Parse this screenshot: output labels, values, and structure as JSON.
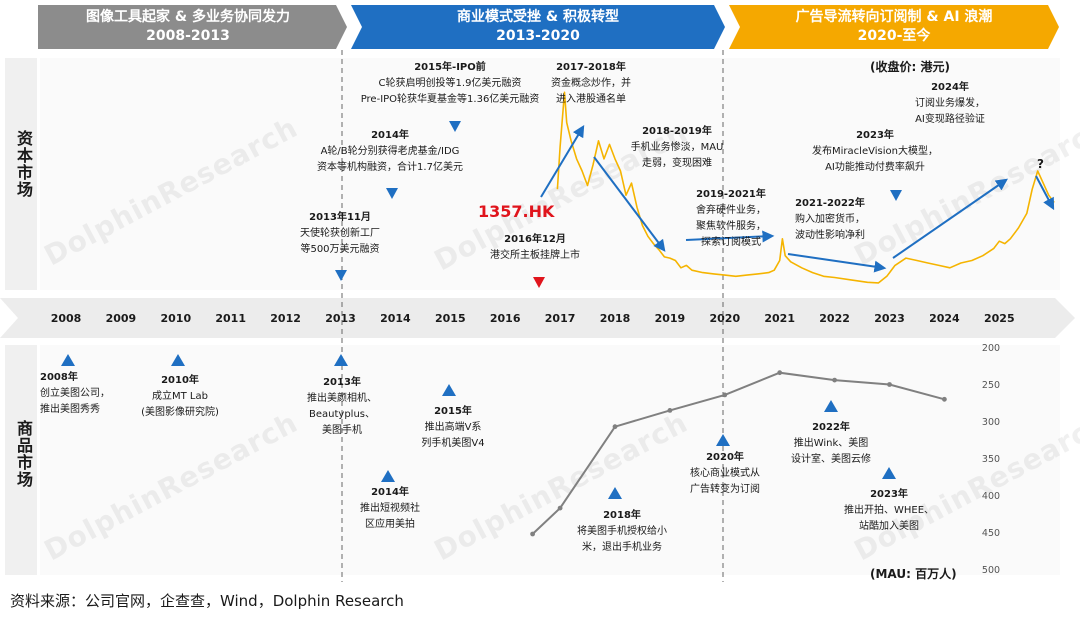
{
  "phases": [
    {
      "title": "图像工具起家 & 多业务协同发力",
      "period": "2008-2013",
      "color": "#8c8c8c"
    },
    {
      "title": "商业模式受挫 & 积极转型",
      "period": "2013-2020",
      "color": "#1f6fc2"
    },
    {
      "title": "广告导流转向订阅制 & AI 浪潮",
      "period": "2020-至今",
      "color": "#f5a800"
    }
  ],
  "bands": {
    "capital": "资本市场",
    "product": "商品市场"
  },
  "years": [
    "2008",
    "2009",
    "2010",
    "2011",
    "2012",
    "2013",
    "2014",
    "2015",
    "2016",
    "2017",
    "2018",
    "2019",
    "2020",
    "2021",
    "2022",
    "2023",
    "2024",
    "2025"
  ],
  "price_unit": "(收盘价: 港元)",
  "mau_unit": "(MAU: 百万人)",
  "ticker": "1357.HK",
  "question_mark": "?",
  "capital_notes": {
    "ipo_pre_title": "2015年-IPO前",
    "ipo_pre_l1": "C轮获启明创投等1.9亿美元融资",
    "ipo_pre_l2": "Pre-IPO轮获华夏基金等1.36亿美元融资",
    "y2014_title": "2014年",
    "y2014_l1": "A轮/B轮分别获得老虎基金/IDG",
    "y2014_l2": "资本等机构融资，合计1.7亿美元",
    "y2013_title": "2013年11月",
    "y2013_l1": "天使轮获创新工厂",
    "y2013_l2": "等500万美元融资",
    "y2016_title": "2016年12月",
    "y2016_l1": "港交所主板挂牌上市",
    "y2017_title": "2017-2018年",
    "y2017_l1": "资金概念炒作，并",
    "y2017_l2": "进入港股通名单",
    "y2018_title": "2018-2019年",
    "y2018_l1": "手机业务惨淡，MAU",
    "y2018_l2": "走弱，变现困难",
    "y2019_title": "2019-2021年",
    "y2019_l1": "舍弃硬件业务，",
    "y2019_l2": "聚焦软件服务，",
    "y2019_l3": "探索订阅模式",
    "y2021_title": "2021-2022年",
    "y2021_l1": "购入加密货币，",
    "y2021_l2": "波动性影响净利",
    "y2023_title": "2023年",
    "y2023_l1": "发布MiracleVision大模型，",
    "y2023_l2": "AI功能推动付费率飙升",
    "y2024_title": "2024年",
    "y2024_l1": "订阅业务爆发，",
    "y2024_l2": "AI变现路径验证"
  },
  "product_notes": {
    "p2008_title": "2008年",
    "p2008_l1": "创立美图公司，",
    "p2008_l2": "推出美图秀秀",
    "p2010_title": "2010年",
    "p2010_l1": "成立MT Lab",
    "p2010_l2": "(美图影像研究院)",
    "p2013_title": "2013年",
    "p2013_l1": "推出美颜相机、",
    "p2013_l2": "Beautyplus、",
    "p2013_l3": "美图手机",
    "p2014_title": "2014年",
    "p2014_l1": "推出短视频社",
    "p2014_l2": "区应用美拍",
    "p2015_title": "2015年",
    "p2015_l1": "推出高端V系",
    "p2015_l2": "列手机美图V4",
    "p2018_title": "2018年",
    "p2018_l1": "将美图手机授权给小",
    "p2018_l2": "米，退出手机业务",
    "p2020_title": "2020年",
    "p2020_l1": "核心商业模式从",
    "p2020_l2": "广告转变为订阅",
    "p2022_title": "2022年",
    "p2022_l1": "推出Wink、美图",
    "p2022_l2": "设计室、美图云修",
    "p2023_title": "2023年",
    "p2023_l1": "推出开拍、WHEE、",
    "p2023_l2": "站酷加入美图"
  },
  "source": "资料来源：公司官网，企查查，Wind，Dolphin Research",
  "watermark": "DolphinResearch",
  "chart_data": [
    {
      "type": "line",
      "name": "price",
      "x_unit": "year",
      "x_min": 2008,
      "x_max": 2026,
      "points": [
        [
          2016.95,
          8.5
        ],
        [
          2017.0,
          12.0
        ],
        [
          2017.08,
          16.5
        ],
        [
          2017.12,
          14.0
        ],
        [
          2017.2,
          12.5
        ],
        [
          2017.3,
          11.0
        ],
        [
          2017.4,
          10.0
        ],
        [
          2017.5,
          8.8
        ],
        [
          2017.6,
          10.5
        ],
        [
          2017.7,
          12.5
        ],
        [
          2017.8,
          11.0
        ],
        [
          2017.9,
          12.2
        ],
        [
          2018.0,
          11.0
        ],
        [
          2018.1,
          10.0
        ],
        [
          2018.2,
          8.0
        ],
        [
          2018.3,
          9.0
        ],
        [
          2018.4,
          7.0
        ],
        [
          2018.5,
          5.5
        ],
        [
          2018.6,
          4.6
        ],
        [
          2018.7,
          4.0
        ],
        [
          2018.8,
          3.5
        ],
        [
          2018.9,
          2.9
        ],
        [
          2019.0,
          2.8
        ],
        [
          2019.1,
          2.6
        ],
        [
          2019.2,
          2.0
        ],
        [
          2019.3,
          2.2
        ],
        [
          2019.4,
          1.8
        ],
        [
          2019.6,
          1.6
        ],
        [
          2019.8,
          1.5
        ],
        [
          2020.0,
          1.4
        ],
        [
          2020.2,
          1.3
        ],
        [
          2020.4,
          1.4
        ],
        [
          2020.6,
          1.5
        ],
        [
          2020.8,
          1.6
        ],
        [
          2020.9,
          1.8
        ],
        [
          2021.0,
          2.6
        ],
        [
          2021.05,
          4.4
        ],
        [
          2021.1,
          3.0
        ],
        [
          2021.2,
          2.5
        ],
        [
          2021.4,
          2.0
        ],
        [
          2021.6,
          1.6
        ],
        [
          2021.8,
          1.3
        ],
        [
          2022.0,
          1.2
        ],
        [
          2022.3,
          1.0
        ],
        [
          2022.6,
          0.8
        ],
        [
          2022.8,
          0.75
        ],
        [
          2022.95,
          1.3
        ],
        [
          2023.1,
          2.2
        ],
        [
          2023.3,
          2.8
        ],
        [
          2023.5,
          2.6
        ],
        [
          2023.7,
          2.4
        ],
        [
          2023.9,
          2.2
        ],
        [
          2024.1,
          2.0
        ],
        [
          2024.3,
          2.4
        ],
        [
          2024.5,
          2.6
        ],
        [
          2024.7,
          3.0
        ],
        [
          2024.9,
          3.6
        ],
        [
          2025.0,
          4.2
        ],
        [
          2025.1,
          4.0
        ],
        [
          2025.2,
          4.4
        ],
        [
          2025.35,
          5.3
        ],
        [
          2025.5,
          6.5
        ],
        [
          2025.6,
          8.5
        ],
        [
          2025.7,
          10.0
        ],
        [
          2025.8,
          9.0
        ],
        [
          2025.9,
          8.0
        ],
        [
          2026.0,
          7.4
        ]
      ],
      "color": "#f5b400"
    },
    {
      "type": "line",
      "name": "MAU",
      "ylabel": "(MAU: 百万人)",
      "ylim": [
        200,
        500
      ],
      "y_inverted": true,
      "yticks": [
        200,
        250,
        300,
        350,
        400,
        450,
        500
      ],
      "x": [
        2016.5,
        2017.0,
        2018.0,
        2019.0,
        2020.0,
        2021.0,
        2022.0,
        2023.0,
        2024.0
      ],
      "values": [
        450,
        415,
        305,
        283,
        262,
        232,
        242,
        248,
        268
      ],
      "color": "#808080"
    }
  ],
  "trend_arrows_color": "#1f6fc2"
}
